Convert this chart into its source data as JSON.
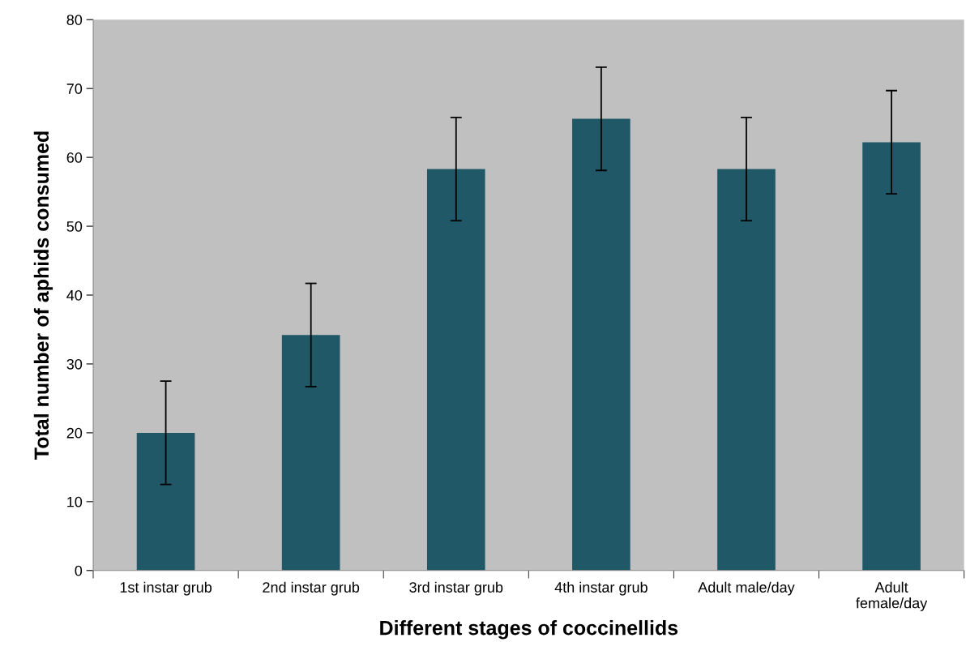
{
  "chart_data": {
    "type": "bar",
    "xlabel": "Different stages of coccinellids",
    "ylabel": "Total number of aphids consumed",
    "categories": [
      "1st instar grub",
      "2nd instar grub",
      "3rd instar grub",
      "4th instar grub",
      "Adult male/day",
      "Adult\nfemale/day"
    ],
    "values": [
      20.0,
      34.2,
      58.3,
      65.6,
      58.3,
      62.2
    ],
    "errors": [
      7.5,
      7.5,
      7.5,
      7.5,
      7.5,
      7.5
    ],
    "color": "#215868",
    "ylim": [
      0,
      80
    ],
    "yticks": [
      0,
      10,
      20,
      30,
      40,
      50,
      60,
      70,
      80
    ],
    "grid": false,
    "legend": false
  }
}
